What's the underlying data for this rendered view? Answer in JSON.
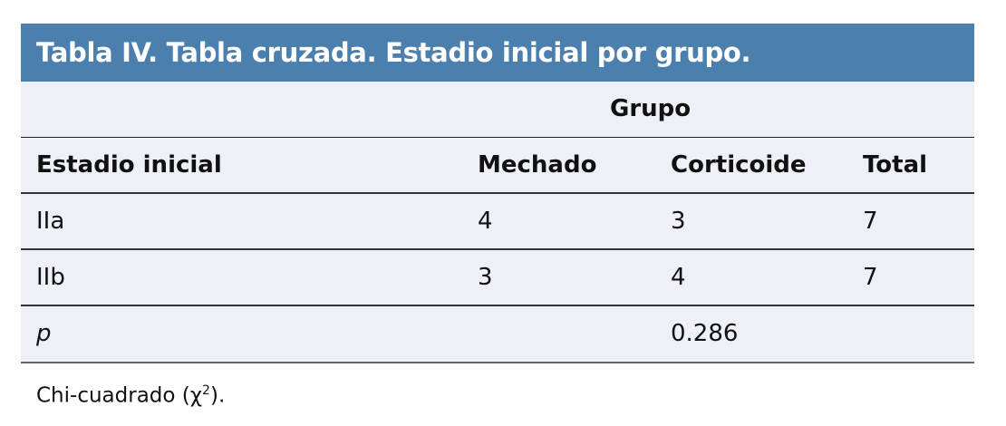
{
  "title": "Tabla IV. Tabla cruzada. Estadio inicial por grupo.",
  "group_header": "Grupo",
  "columns": [
    "Estadio inicial",
    "Mechado",
    "Corticoide",
    "Total"
  ],
  "rows": [
    {
      "label": "IIa",
      "values": [
        "4",
        "3",
        "7"
      ]
    },
    {
      "label": "IIb",
      "values": [
        "3",
        "4",
        "7"
      ]
    }
  ],
  "p_row": {
    "label": "p",
    "value": "0.286"
  },
  "footnote": {
    "text": "Chi-cuadrado (χ",
    "sup": "2",
    "end": ")."
  },
  "colors": {
    "header_bg": "#4a7fae",
    "body_bg": "#edf0f7"
  }
}
